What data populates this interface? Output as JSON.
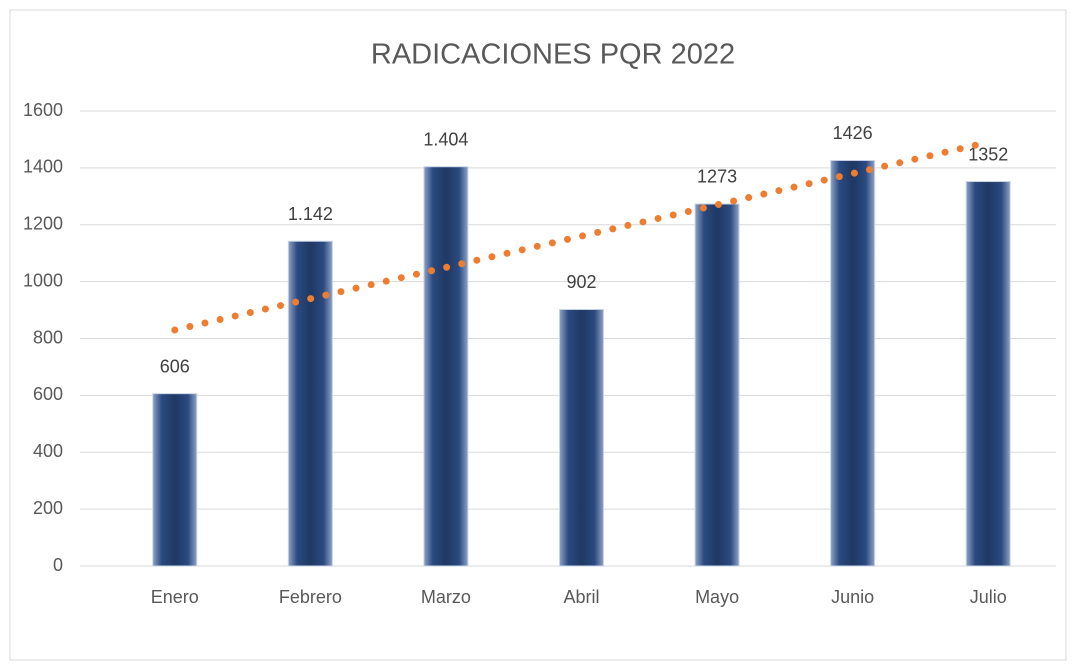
{
  "chart_data": {
    "type": "bar",
    "title": "RADICACIONES PQR 2022",
    "categories": [
      "Enero",
      "Febrero",
      "Marzo",
      "Abril",
      "Mayo",
      "Junio",
      "Julio"
    ],
    "values": [
      606,
      1142,
      1404,
      902,
      1273,
      1426,
      1352
    ],
    "value_labels": [
      "606",
      "1.142",
      "1.404",
      "902",
      "1273",
      "1426",
      "1352"
    ],
    "color": "#1f3864",
    "trendline": {
      "color": "#ed7d31",
      "values": [
        830,
        1490
      ]
    },
    "ylim": [
      0,
      1600
    ],
    "yticks": [
      0,
      200,
      400,
      600,
      800,
      1000,
      1200,
      1400,
      1600
    ],
    "grid": true
  }
}
